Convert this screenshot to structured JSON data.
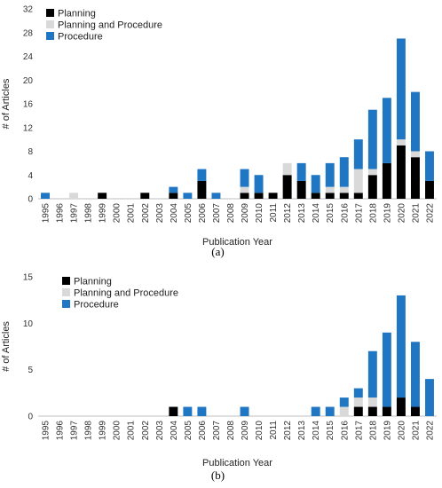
{
  "chart_data": [
    {
      "panel_label": "(a)",
      "type": "bar",
      "stacked": true,
      "xlabel": "Publication Year",
      "ylabel": "# of Articles",
      "ylim": [
        0,
        32
      ],
      "yticks": [
        0,
        4,
        8,
        12,
        16,
        20,
        24,
        28,
        32
      ],
      "grid": false,
      "legend": "top-left",
      "categories": [
        "1995",
        "1996",
        "1997",
        "1998",
        "1999",
        "2000",
        "2001",
        "2002",
        "2003",
        "2004",
        "2005",
        "2006",
        "2007",
        "2008",
        "2009",
        "2010",
        "2011",
        "2012",
        "2013",
        "2014",
        "2015",
        "2016",
        "2017",
        "2018",
        "2019",
        "2020",
        "2021",
        "2022"
      ],
      "series": [
        {
          "name": "Planning",
          "color": "#000000",
          "values": [
            0,
            0,
            0,
            0,
            1,
            0,
            0,
            1,
            0,
            1,
            0,
            3,
            0,
            0,
            1,
            1,
            1,
            4,
            3,
            1,
            1,
            1,
            1,
            4,
            6,
            9,
            7,
            3
          ]
        },
        {
          "name": "Planning and Procedure",
          "color": "#d9d9d9",
          "values": [
            0,
            0,
            1,
            0,
            0,
            0,
            0,
            0,
            0,
            0,
            0,
            0,
            0,
            0,
            1,
            0,
            0,
            2,
            0,
            0,
            1,
            1,
            4,
            1,
            0,
            1,
            1,
            0
          ]
        },
        {
          "name": "Procedure",
          "color": "#1f77c4",
          "values": [
            1,
            0,
            0,
            0,
            0,
            0,
            0,
            0,
            0,
            1,
            1,
            2,
            1,
            0,
            3,
            3,
            0,
            0,
            3,
            3,
            4,
            5,
            5,
            10,
            11,
            17,
            10,
            5
          ]
        }
      ]
    },
    {
      "panel_label": "(b)",
      "type": "bar",
      "stacked": true,
      "xlabel": "Publication Year",
      "ylabel": "# of Articles",
      "ylim": [
        0,
        15
      ],
      "yticks": [
        0,
        5,
        10,
        15
      ],
      "grid": false,
      "legend": "top-left",
      "categories": [
        "1995",
        "1996",
        "1997",
        "1998",
        "1999",
        "2000",
        "2001",
        "2002",
        "2003",
        "2004",
        "2005",
        "2006",
        "2007",
        "2008",
        "2009",
        "2010",
        "2011",
        "2012",
        "2013",
        "2014",
        "2015",
        "2016",
        "2017",
        "2018",
        "2019",
        "2020",
        "2021",
        "2022"
      ],
      "series": [
        {
          "name": "Planning",
          "color": "#000000",
          "values": [
            0,
            0,
            0,
            0,
            0,
            0,
            0,
            0,
            0,
            1,
            0,
            0,
            0,
            0,
            0,
            0,
            0,
            0,
            0,
            0,
            0,
            0,
            1,
            1,
            1,
            2,
            1,
            0
          ]
        },
        {
          "name": "Planning and Procedure",
          "color": "#d9d9d9",
          "values": [
            0,
            0,
            0,
            0,
            0,
            0,
            0,
            0,
            0,
            0,
            0,
            0,
            0,
            0,
            0,
            0,
            0,
            0,
            0,
            0,
            0,
            1,
            1,
            1,
            0,
            0,
            0,
            0
          ]
        },
        {
          "name": "Procedure",
          "color": "#1f77c4",
          "values": [
            0,
            0,
            0,
            0,
            0,
            0,
            0,
            0,
            0,
            0,
            1,
            1,
            0,
            0,
            1,
            0,
            0,
            0,
            0,
            1,
            1,
            1,
            1,
            5,
            8,
            11,
            7,
            4
          ]
        }
      ]
    }
  ]
}
